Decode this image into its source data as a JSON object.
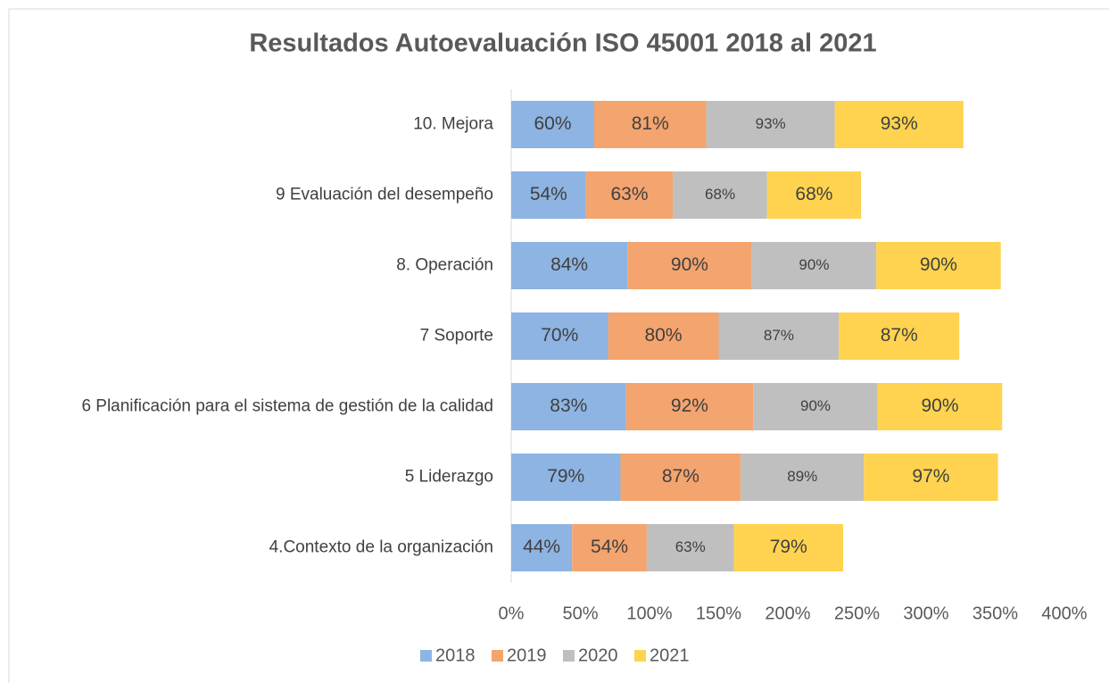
{
  "chart_data": {
    "type": "stacked_bar_horizontal",
    "title": "Resultados Autoevaluación ISO 45001  2018 al 2021",
    "categories": [
      "4.Contexto de la organización",
      "5 Liderazgo",
      "6 Planificación para el sistema de gestión de la calidad",
      "7 Soporte",
      "8. Operación",
      "9 Evaluación del desempeño",
      "10. Mejora"
    ],
    "series": [
      {
        "name": "2018",
        "color": "#8db4e2",
        "values": [
          44,
          79,
          83,
          70,
          84,
          54,
          60
        ],
        "value_labels": [
          "44%",
          "79%",
          "83%",
          "70%",
          "84%",
          "54%",
          "60%"
        ]
      },
      {
        "name": "2019",
        "color": "#f4a46e",
        "values": [
          54,
          87,
          92,
          80,
          90,
          63,
          81
        ],
        "value_labels": [
          "54%",
          "87%",
          "92%",
          "80%",
          "90%",
          "63%",
          "81%"
        ]
      },
      {
        "name": "2020",
        "color": "#bfbfbf",
        "values": [
          63,
          89,
          90,
          87,
          90,
          68,
          93
        ],
        "value_labels": [
          "63%",
          "89%",
          "90%",
          "87%",
          "90%",
          "68%",
          "93%"
        ]
      },
      {
        "name": "2021",
        "color": "#ffd34f",
        "values": [
          79,
          97,
          90,
          87,
          90,
          68,
          93
        ],
        "value_labels": [
          "79%",
          "97%",
          "90%",
          "87%",
          "90%",
          "68%",
          "93%"
        ]
      }
    ],
    "xlim": [
      0,
      400
    ],
    "xticks": [
      {
        "value": 0,
        "label": "0%"
      },
      {
        "value": 50,
        "label": "50%"
      },
      {
        "value": 100,
        "label": "100%"
      },
      {
        "value": 150,
        "label": "150%"
      },
      {
        "value": 200,
        "label": "200%"
      },
      {
        "value": 250,
        "label": "250%"
      },
      {
        "value": 300,
        "label": "300%"
      },
      {
        "value": 350,
        "label": "350%"
      },
      {
        "value": 400,
        "label": "400%"
      }
    ],
    "grid": false,
    "legend": "bottom"
  }
}
